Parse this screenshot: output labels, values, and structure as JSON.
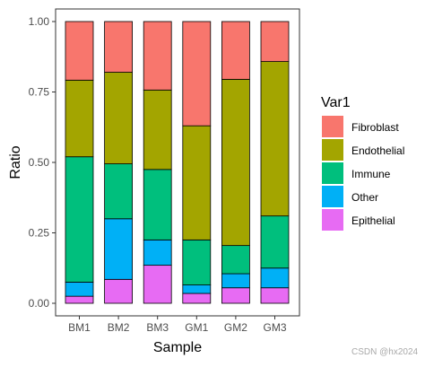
{
  "chart_data": {
    "type": "bar",
    "stacked": true,
    "categories": [
      "BM1",
      "BM2",
      "BM3",
      "GM1",
      "GM2",
      "GM3"
    ],
    "xlabel": "Sample",
    "ylabel": "Ratio",
    "ylim": [
      0,
      1
    ],
    "yticks": [
      "0.00",
      "0.25",
      "0.50",
      "0.75",
      "1.00"
    ],
    "legend_title": "Var1",
    "legend_position": "right",
    "grid": false,
    "series": [
      {
        "name": "Epithelial",
        "color": "#E76BF3",
        "values": [
          0.025,
          0.085,
          0.135,
          0.035,
          0.055,
          0.055
        ]
      },
      {
        "name": "Other",
        "color": "#00B0F6",
        "values": [
          0.05,
          0.215,
          0.09,
          0.03,
          0.05,
          0.07
        ]
      },
      {
        "name": "Immune",
        "color": "#00BF7D",
        "values": [
          0.445,
          0.195,
          0.25,
          0.16,
          0.1,
          0.185
        ]
      },
      {
        "name": "Endothelial",
        "color": "#A3A500",
        "values": [
          0.272,
          0.325,
          0.282,
          0.405,
          0.59,
          0.548
        ]
      },
      {
        "name": "Fibroblast",
        "color": "#F8766D",
        "values": [
          0.208,
          0.18,
          0.243,
          0.37,
          0.205,
          0.142
        ]
      }
    ],
    "legend_order": [
      "Fibroblast",
      "Endothelial",
      "Immune",
      "Other",
      "Epithelial"
    ]
  },
  "watermark": "CSDN @hx2024"
}
